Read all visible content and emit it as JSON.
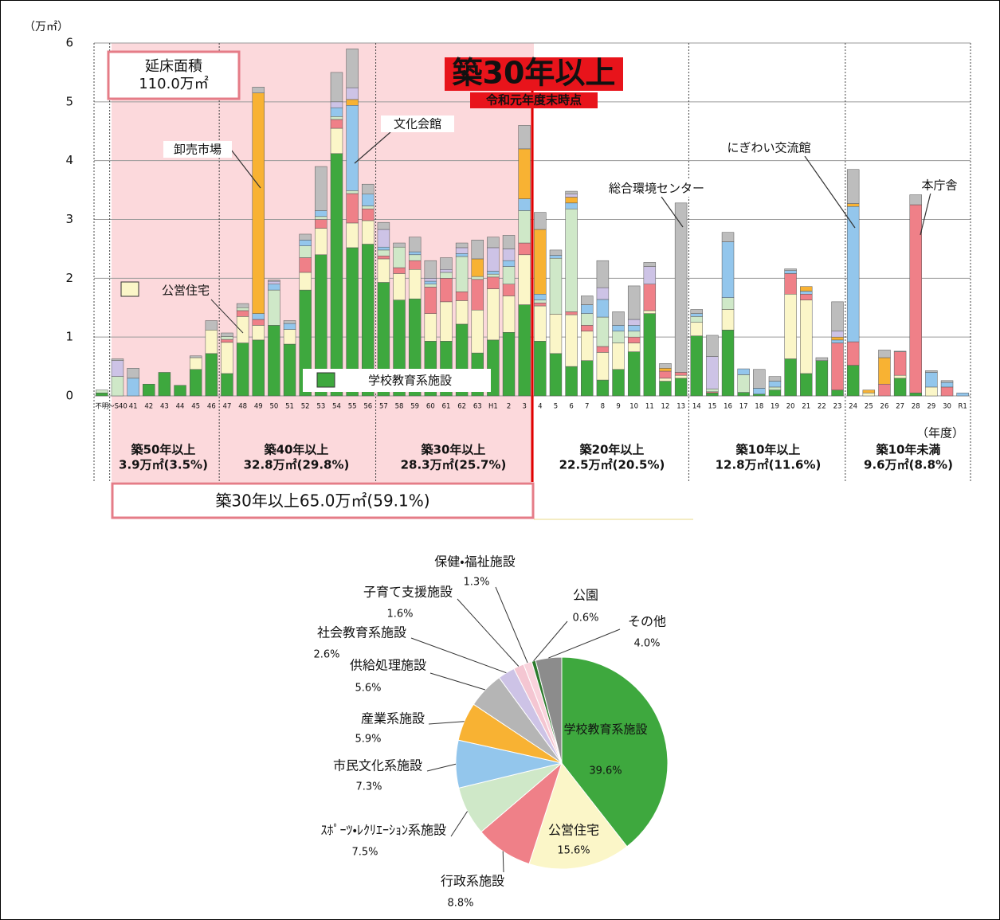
{
  "chart_data": [
    {
      "type": "bar",
      "stacked": true,
      "unit": "（万㎡）",
      "x_unit": "（年度）",
      "categories": [
        "不明",
        "～S40",
        "41",
        "42",
        "43",
        "44",
        "45",
        "46",
        "47",
        "48",
        "49",
        "50",
        "51",
        "52",
        "53",
        "54",
        "55",
        "56",
        "57",
        "58",
        "59",
        "60",
        "61",
        "62",
        "63",
        "H1",
        "2",
        "3",
        "4",
        "5",
        "6",
        "7",
        "8",
        "9",
        "10",
        "11",
        "12",
        "13",
        "14",
        "15",
        "16",
        "17",
        "18",
        "19",
        "20",
        "21",
        "22",
        "23",
        "24",
        "25",
        "26",
        "27",
        "28",
        "29",
        "30",
        "R1"
      ],
      "series": [
        {
          "name": "学校教育系施設",
          "color": "#3ea83e",
          "values": [
            0.05,
            0,
            0,
            0.2,
            0.4,
            0.18,
            0.45,
            0.72,
            0.38,
            0.9,
            0.95,
            1.2,
            0.88,
            1.8,
            2.4,
            4.12,
            2.52,
            2.58,
            1.93,
            1.63,
            1.65,
            0.93,
            0.93,
            1.22,
            0.73,
            0.95,
            1.08,
            1.55,
            0.93,
            0.72,
            0.5,
            0.6,
            0.27,
            0.45,
            0.75,
            1.4,
            0.25,
            0.3,
            1.02,
            0.05,
            1.12,
            0.06,
            0.03,
            0.1,
            0.63,
            0.38,
            0.6,
            0.1,
            0.52,
            0,
            0,
            0.3,
            0.05,
            0,
            0,
            0
          ]
        },
        {
          "name": "公営住宅",
          "color": "#fbf6c8",
          "values": [
            0,
            0,
            0,
            0,
            0,
            0,
            0.2,
            0.4,
            0.53,
            0.45,
            0.25,
            0,
            0.25,
            0.3,
            0.45,
            0.43,
            0.42,
            0.4,
            0.4,
            0.45,
            0.5,
            0.47,
            0.67,
            0.4,
            0.73,
            0.87,
            0.62,
            0.85,
            0.6,
            0.67,
            0.88,
            0.5,
            0.47,
            0.45,
            0.15,
            0.05,
            0.05,
            0.05,
            0.23,
            0,
            0.35,
            0,
            0,
            0,
            1.1,
            1.25,
            0,
            0,
            0,
            0.05,
            0,
            0.05,
            0,
            0.15,
            0,
            0
          ]
        },
        {
          "color": "#ef8088",
          "values": [
            0,
            0,
            0,
            0,
            0,
            0,
            0,
            0,
            0.05,
            0.1,
            0.1,
            0,
            0,
            0.25,
            0.15,
            0.15,
            0.5,
            0.2,
            0.05,
            0.1,
            0.15,
            0.45,
            0.4,
            0.15,
            0.52,
            0.2,
            0.2,
            0.2,
            0.05,
            0,
            0.05,
            0.1,
            0.1,
            0,
            0.1,
            0.45,
            0.12,
            0.05,
            0,
            0.02,
            0,
            0,
            0,
            0,
            0.35,
            0.1,
            0,
            0.8,
            0.4,
            0,
            0.2,
            0.4,
            3.2,
            0,
            0.15,
            0
          ]
        },
        {
          "color": "#cfe8c8",
          "values": [
            0.05,
            0.33,
            0,
            0,
            0,
            0,
            0,
            0,
            0.05,
            0.05,
            0,
            0.6,
            0,
            0.2,
            0.05,
            0.05,
            0.05,
            0.05,
            0.1,
            0.35,
            0.1,
            0.05,
            0.1,
            0.6,
            0.05,
            0.05,
            0.3,
            0.55,
            0.05,
            0.95,
            1.75,
            0.2,
            0.5,
            0.2,
            0.1,
            0,
            0,
            0,
            0.1,
            0.05,
            0.2,
            0.3,
            0,
            0.05,
            0,
            0,
            0,
            0,
            0,
            0,
            0,
            0,
            0,
            0,
            0,
            0
          ]
        },
        {
          "color": "#93c6ec",
          "values": [
            0,
            0,
            0.3,
            0,
            0,
            0,
            0,
            0,
            0,
            0,
            0.1,
            0.1,
            0.1,
            0.1,
            0.1,
            0.15,
            1.45,
            0.2,
            0.05,
            0,
            0.05,
            0.05,
            0,
            0.05,
            0,
            0.05,
            0.1,
            0.2,
            0.1,
            0.05,
            0.1,
            0.15,
            0.3,
            0.1,
            0.1,
            0,
            0,
            0,
            0.05,
            0,
            0.95,
            0.1,
            0.1,
            0.1,
            0.05,
            0.05,
            0,
            0.05,
            2.3,
            0,
            0,
            0,
            0,
            0.25,
            0.08,
            0.05
          ]
        },
        {
          "color": "#f8b233",
          "values": [
            0,
            0,
            0,
            0,
            0,
            0,
            0,
            0,
            0,
            0,
            3.75,
            0,
            0,
            0,
            0,
            0,
            0.1,
            0,
            0,
            0,
            0,
            0,
            0,
            0,
            0.3,
            0,
            0,
            0.85,
            1.1,
            0,
            0.1,
            0,
            0,
            0,
            0,
            0,
            0.05,
            0,
            0,
            0,
            0,
            0,
            0,
            0,
            0,
            0.08,
            0,
            0.05,
            0.05,
            0.05,
            0.45,
            0,
            0,
            0,
            0,
            0
          ]
        },
        {
          "color": "#cdc3e6",
          "values": [
            0,
            0.27,
            0,
            0,
            0,
            0,
            0,
            0,
            0,
            0,
            0,
            0.05,
            0,
            0,
            0,
            0.1,
            0.2,
            0,
            0.3,
            0,
            0,
            0.05,
            0.05,
            0.1,
            0,
            0.4,
            0.2,
            0,
            0,
            0,
            0.05,
            0,
            0.2,
            0,
            0.1,
            0.3,
            0,
            0,
            0,
            0.55,
            0,
            0,
            0,
            0,
            0,
            0,
            0,
            0.1,
            0,
            0,
            0,
            0,
            0,
            0,
            0,
            0
          ]
        },
        {
          "color": "#bdbdbd",
          "values": [
            0,
            0.03,
            0.17,
            0,
            0,
            0,
            0.03,
            0.16,
            0.06,
            0.07,
            0.1,
            0.02,
            0.05,
            0.1,
            0.75,
            0.5,
            0.66,
            0.17,
            0.12,
            0.07,
            0.25,
            0.3,
            0.2,
            0.08,
            0.32,
            0.18,
            0.23,
            0.4,
            0.29,
            0.09,
            0.05,
            0.15,
            0.46,
            0.23,
            0.57,
            0.07,
            0.08,
            2.88,
            0.07,
            0.36,
            0.16,
            0,
            0.32,
            0.08,
            0.03,
            0,
            0.05,
            0.5,
            0.58,
            0,
            0.13,
            0.01,
            0.17,
            0.03,
            0.03,
            0
          ]
        }
      ],
      "ylim": [
        0,
        6
      ],
      "yticks": [
        0,
        1,
        2,
        3,
        4,
        5,
        6
      ],
      "grid": true,
      "total_label": "延床面積",
      "total_value": "110.0万㎡",
      "highlight": "築30年以上",
      "highlight_sub": "令和元年度末時点",
      "callouts": [
        "卸売市場",
        "文化会館",
        "総合環境センター",
        "にぎわい交流館",
        "本庁舎"
      ],
      "age_groups": [
        {
          "label": "築50年以上",
          "area": "3.9万㎡(3.5%)"
        },
        {
          "label": "築40年以上",
          "area": "32.8万㎡(29.8%)"
        },
        {
          "label": "築30年以上",
          "area": "28.3万㎡(25.7%)"
        },
        {
          "label": "築20年以上",
          "area": "22.5万㎡(20.5%)"
        },
        {
          "label": "築10年以上",
          "area": "12.8万㎡(11.6%)"
        },
        {
          "label": "築10年未満",
          "area": "9.6万㎡(8.8%)"
        }
      ],
      "summary": "築30年以上65.0万㎡(59.1%)"
    },
    {
      "type": "pie",
      "categories": [
        "学校教育系施設",
        "公営住宅",
        "行政系施設",
        "ｽﾎﾟｰﾂ・ﾚｸﾘｴｰｼｮﾝ系施設",
        "市民文化系施設",
        "産業系施設",
        "供給処理施設",
        "社会教育系施設",
        "子育て支援施設",
        "保健・福祉施設",
        "公園",
        "その他"
      ],
      "values": [
        39.6,
        15.6,
        8.8,
        7.5,
        7.3,
        5.9,
        5.6,
        2.6,
        1.6,
        1.3,
        0.6,
        4.0
      ],
      "value_labels": [
        "39.6%",
        "15.6%",
        "8.8%",
        "7.5%",
        "7.3%",
        "5.9%",
        "5.6%",
        "2.6%",
        "1.6%",
        "1.3%",
        "0.6%",
        "4.0%"
      ],
      "colors": [
        "#3ea83e",
        "#fbf6c8",
        "#ef8088",
        "#cfe8c8",
        "#93c6ec",
        "#f8b233",
        "#b5b5b5",
        "#cdc3e6",
        "#f4c6d2",
        "#f9d3dc",
        "#2c7a2c",
        "#8c8c8c"
      ]
    }
  ]
}
